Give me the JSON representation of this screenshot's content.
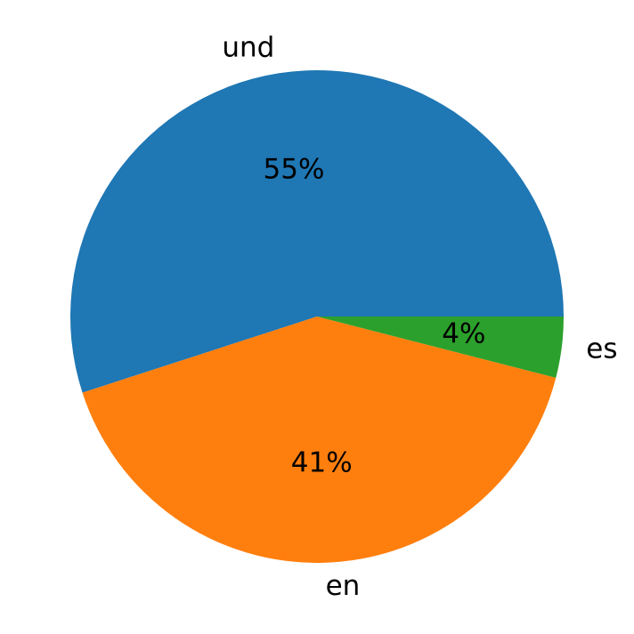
{
  "chart_data": {
    "type": "pie",
    "categories": [
      "und",
      "en",
      "es"
    ],
    "values": [
      55,
      41,
      4
    ],
    "value_labels": [
      "55%",
      "41%",
      "4%"
    ],
    "colors": [
      "#1f77b4",
      "#ff7f0e",
      "#2ca02c"
    ]
  }
}
